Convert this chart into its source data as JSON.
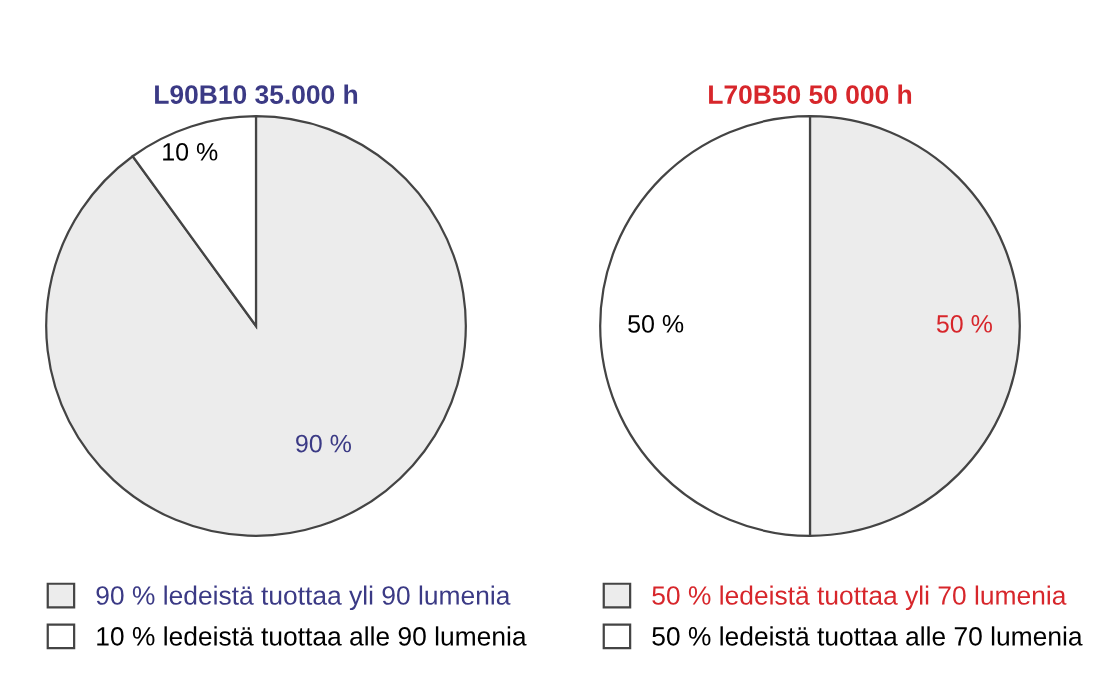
{
  "chart_data": [
    {
      "type": "pie",
      "title": "L90B10 35.000 h",
      "categories": [
        "90 % ledeistä tuottaa yli 90 lumenia",
        "10 % ledeistä tuottaa alle 90 lumenia"
      ],
      "values": [
        90,
        10
      ],
      "colors": [
        "#ececec",
        "#ffffff"
      ],
      "value_labels": [
        "90 %",
        "10 %"
      ],
      "legend": "bottom"
    },
    {
      "type": "pie",
      "title": "L70B50 50 000 h",
      "categories": [
        "50 % ledeistä tuottaa yli 70 lumenia",
        "50 % ledeistä tuottaa alle 70 lumenia"
      ],
      "values": [
        50,
        50
      ],
      "colors": [
        "#ececec",
        "#ffffff"
      ],
      "value_labels": [
        "50 %",
        "50 %"
      ],
      "legend": "bottom"
    }
  ]
}
